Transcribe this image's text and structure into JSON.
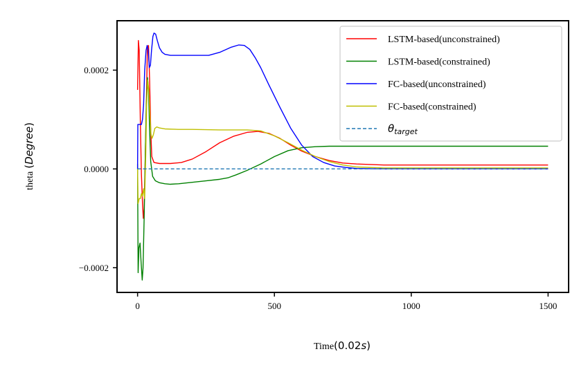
{
  "chart_data": {
    "type": "line",
    "xlabel": {
      "prefix": "Time",
      "unit_open": "(",
      "unit_value": "0.02",
      "unit_var": "s",
      "unit_close": ")"
    },
    "ylabel": {
      "prefix": "theta",
      "unit_open": "(",
      "unit_var": "Degree",
      "unit_close": ")"
    },
    "xlim": [
      -75,
      1575
    ],
    "ylim": [
      -0.00025,
      0.0003
    ],
    "xticks": [
      0,
      500,
      1000,
      1500
    ],
    "xtick_labels": [
      "0",
      "500",
      "1000",
      "1500"
    ],
    "yticks": [
      -0.0002,
      0.0,
      0.0002
    ],
    "ytick_labels": [
      "−0.0002",
      "0.0000",
      "0.0002"
    ],
    "grid": false,
    "legend_placement": "top-right",
    "target_legend": {
      "symbol": "θ",
      "subscript": "target"
    },
    "series": [
      {
        "name": "LSTM-based(unconstrained)",
        "color": "#ff0000",
        "style": "solid",
        "points": [
          [
            0,
            0.00016
          ],
          [
            3,
            0.00026
          ],
          [
            6,
            0.00024
          ],
          [
            10,
            0.0001
          ],
          [
            14,
            -1e-05
          ],
          [
            18,
            -7e-05
          ],
          [
            21,
            -0.0001
          ],
          [
            24,
            -8e-05
          ],
          [
            28,
            2e-05
          ],
          [
            32,
            0.00013
          ],
          [
            36,
            0.000245
          ],
          [
            40,
            0.00025
          ],
          [
            44,
            0.00018
          ],
          [
            48,
            8e-05
          ],
          [
            52,
            2.5e-05
          ],
          [
            60,
            1.3e-05
          ],
          [
            80,
            1.1e-05
          ],
          [
            120,
            1.1e-05
          ],
          [
            160,
            1.3e-05
          ],
          [
            200,
            2e-05
          ],
          [
            250,
            3.5e-05
          ],
          [
            300,
            5.3e-05
          ],
          [
            350,
            6.6e-05
          ],
          [
            400,
            7.4e-05
          ],
          [
            440,
            7.6e-05
          ],
          [
            480,
            7.2e-05
          ],
          [
            520,
            6.2e-05
          ],
          [
            560,
            4.8e-05
          ],
          [
            600,
            3.6e-05
          ],
          [
            650,
            2.5e-05
          ],
          [
            700,
            1.7e-05
          ],
          [
            750,
            1.2e-05
          ],
          [
            800,
            1e-05
          ],
          [
            900,
            8e-06
          ],
          [
            1000,
            8e-06
          ],
          [
            1200,
            8e-06
          ],
          [
            1500,
            8e-06
          ]
        ]
      },
      {
        "name": "LSTM-based(constrained)",
        "color": "#008000",
        "style": "solid",
        "points": [
          [
            0,
            1e-05
          ],
          [
            2,
            -0.00021
          ],
          [
            5,
            -0.00016
          ],
          [
            9,
            -0.00015
          ],
          [
            13,
            -0.00019
          ],
          [
            17,
            -0.000225
          ],
          [
            20,
            -0.0002
          ],
          [
            24,
            -0.0001
          ],
          [
            28,
            2e-05
          ],
          [
            32,
            0.00013
          ],
          [
            36,
            0.000185
          ],
          [
            40,
            0.00016
          ],
          [
            44,
            8e-05
          ],
          [
            48,
            1.5e-05
          ],
          [
            55,
            -1.5e-05
          ],
          [
            65,
            -2.4e-05
          ],
          [
            80,
            -2.8e-05
          ],
          [
            100,
            -3e-05
          ],
          [
            120,
            -3.1e-05
          ],
          [
            150,
            -3e-05
          ],
          [
            200,
            -2.7e-05
          ],
          [
            250,
            -2.4e-05
          ],
          [
            300,
            -2.1e-05
          ],
          [
            330,
            -1.8e-05
          ],
          [
            360,
            -1.2e-05
          ],
          [
            400,
            -3e-06
          ],
          [
            450,
            1e-05
          ],
          [
            500,
            2.5e-05
          ],
          [
            550,
            3.7e-05
          ],
          [
            600,
            4.3e-05
          ],
          [
            650,
            4.5e-05
          ],
          [
            700,
            4.6e-05
          ],
          [
            800,
            4.6e-05
          ],
          [
            1000,
            4.6e-05
          ],
          [
            1200,
            4.6e-05
          ],
          [
            1500,
            4.6e-05
          ]
        ]
      },
      {
        "name": "FC-based(unconstrained)",
        "color": "#0000ff",
        "style": "solid",
        "points": [
          [
            0,
            0.0
          ],
          [
            1,
            9e-05
          ],
          [
            8,
            9e-05
          ],
          [
            14,
            9e-05
          ],
          [
            18,
            0.0001
          ],
          [
            22,
            0.00013
          ],
          [
            26,
            0.0002
          ],
          [
            31,
            0.00024
          ],
          [
            35,
            0.00025
          ],
          [
            39,
            0.00024
          ],
          [
            43,
            0.000205
          ],
          [
            47,
            0.00021
          ],
          [
            51,
            0.00024
          ],
          [
            56,
            0.000268
          ],
          [
            60,
            0.000275
          ],
          [
            66,
            0.000273
          ],
          [
            72,
            0.00026
          ],
          [
            80,
            0.000245
          ],
          [
            90,
            0.000236
          ],
          [
            100,
            0.000232
          ],
          [
            120,
            0.00023
          ],
          [
            200,
            0.00023
          ],
          [
            260,
            0.00023
          ],
          [
            300,
            0.000236
          ],
          [
            340,
            0.000246
          ],
          [
            370,
            0.000251
          ],
          [
            390,
            0.00025
          ],
          [
            410,
            0.000242
          ],
          [
            430,
            0.000225
          ],
          [
            450,
            0.000205
          ],
          [
            480,
            0.00017
          ],
          [
            520,
            0.000125
          ],
          [
            560,
            8.2e-05
          ],
          [
            600,
            4.8e-05
          ],
          [
            640,
            2.5e-05
          ],
          [
            680,
            1.3e-05
          ],
          [
            720,
            6e-06
          ],
          [
            760,
            3e-06
          ],
          [
            800,
            1e-06
          ],
          [
            900,
            0.0
          ],
          [
            1000,
            0.0
          ],
          [
            1200,
            0.0
          ],
          [
            1500,
            0.0
          ]
        ]
      },
      {
        "name": "FC-based(constrained)",
        "color": "#bfbf00",
        "style": "solid",
        "points": [
          [
            0,
            0.0
          ],
          [
            2,
            -7e-05
          ],
          [
            6,
            -6e-05
          ],
          [
            10,
            -6e-05
          ],
          [
            14,
            -5e-05
          ],
          [
            18,
            -5.5e-05
          ],
          [
            22,
            -4e-05
          ],
          [
            26,
            -6e-05
          ],
          [
            30,
            3e-05
          ],
          [
            33,
            0.00013
          ],
          [
            37,
            0.00018
          ],
          [
            41,
            0.00016
          ],
          [
            45,
            0.00011
          ],
          [
            49,
            7e-05
          ],
          [
            53,
            6.2e-05
          ],
          [
            58,
            7e-05
          ],
          [
            63,
            8.2e-05
          ],
          [
            70,
            8.5e-05
          ],
          [
            80,
            8.3e-05
          ],
          [
            100,
            8.1e-05
          ],
          [
            150,
            8e-05
          ],
          [
            200,
            8e-05
          ],
          [
            300,
            7.9e-05
          ],
          [
            400,
            7.9e-05
          ],
          [
            450,
            7.7e-05
          ],
          [
            500,
            6.7e-05
          ],
          [
            550,
            5.3e-05
          ],
          [
            600,
            3.8e-05
          ],
          [
            650,
            2.5e-05
          ],
          [
            700,
            1.5e-05
          ],
          [
            750,
            8e-06
          ],
          [
            800,
            4e-06
          ],
          [
            900,
            2e-06
          ],
          [
            1000,
            2e-06
          ],
          [
            1200,
            2e-06
          ],
          [
            1500,
            2e-06
          ]
        ]
      },
      {
        "name": "θtarget",
        "color": "#1f77b4",
        "style": "dashed",
        "points": [
          [
            0,
            0.0
          ],
          [
            1500,
            0.0
          ]
        ]
      }
    ]
  }
}
